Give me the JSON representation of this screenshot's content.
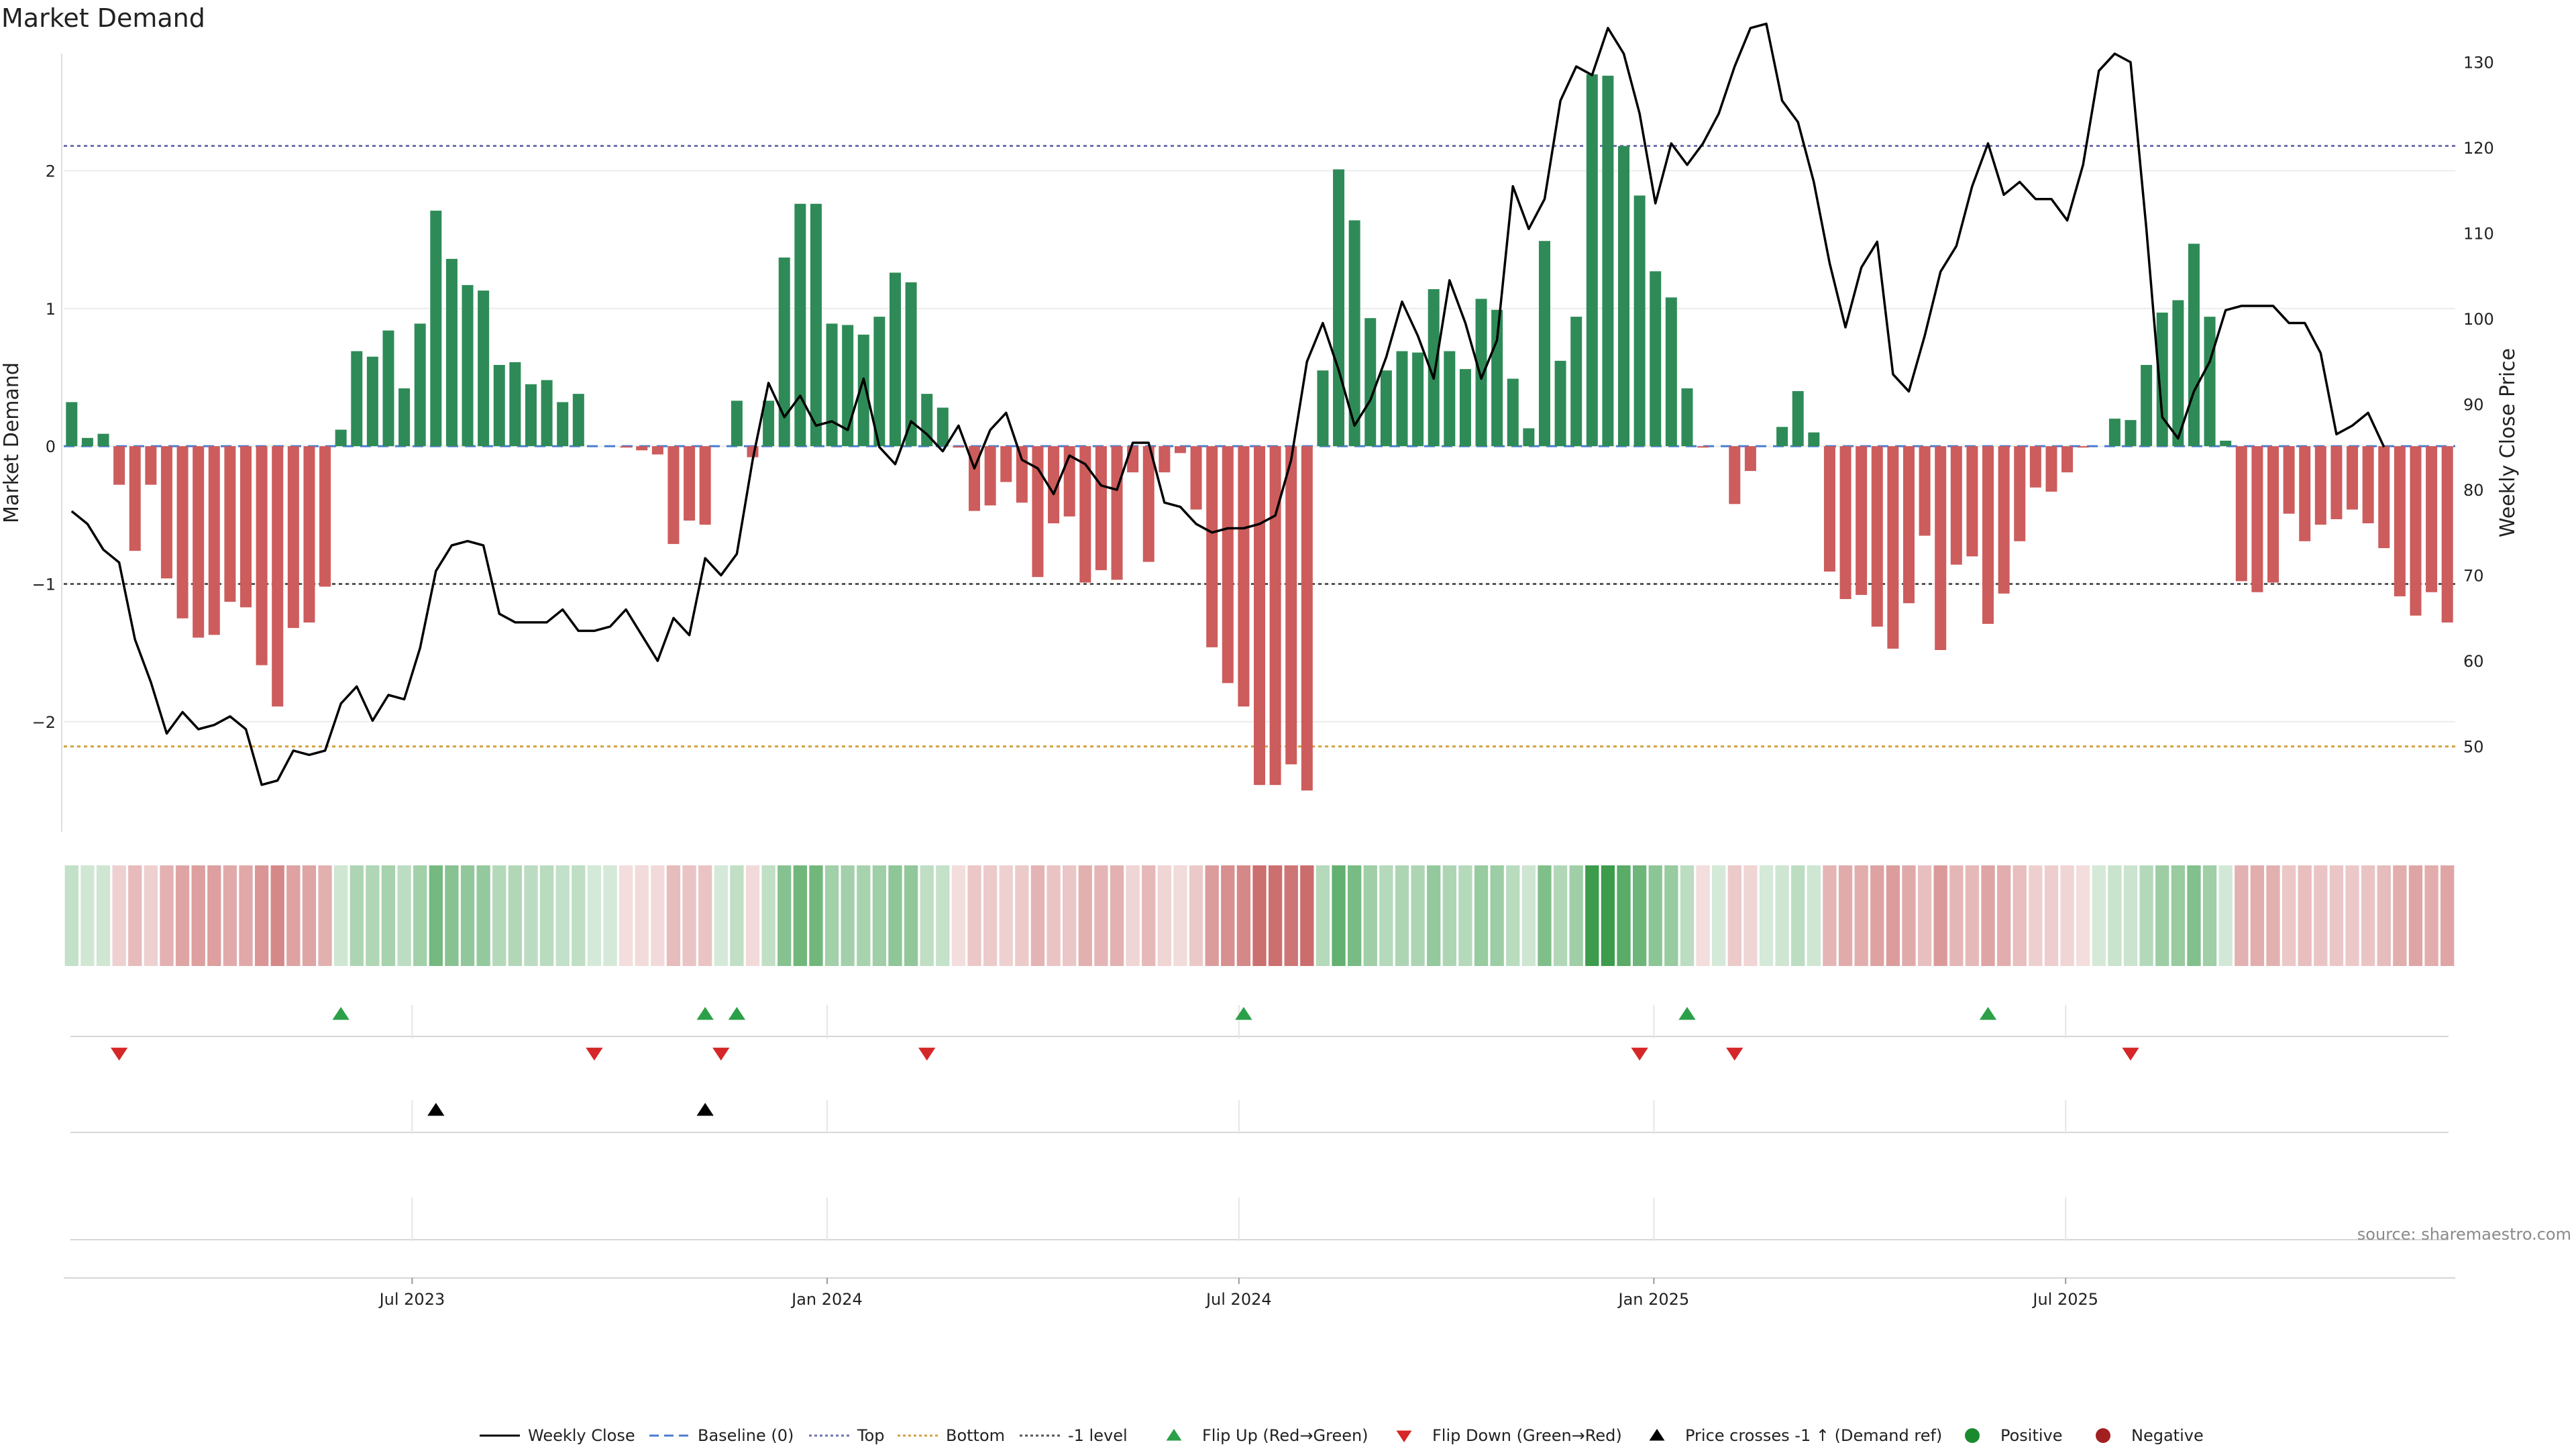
{
  "title": "Market Demand",
  "source": "source: sharemaestro.com",
  "colors": {
    "positive": "#2e8b57",
    "negative": "#cd5c5c",
    "price": "#000000",
    "baseline": "#4a7bd0",
    "top": "#7070b0",
    "bottom": "#d4a040",
    "minus1": "#555555",
    "flip_up": "#2ca048",
    "flip_down": "#d62728",
    "heat_pos": "#3c9c4c",
    "heat_neg": "#c86464",
    "dot_pos": "#1b8a2e",
    "dot_neg": "#a32020"
  },
  "chart_data": {
    "type": "bar",
    "ylabel": "Market Demand",
    "y2label": "Weekly Close Price",
    "ylim": [
      -2.8,
      2.85
    ],
    "y2lim": [
      40,
      131
    ],
    "yticks": [
      2,
      1,
      0,
      -1,
      -2
    ],
    "yticklabels": [
      "2",
      "1",
      "0",
      "−1",
      "−2"
    ],
    "y2ticks": [
      130,
      120,
      110,
      100,
      90,
      80,
      70,
      60,
      50
    ],
    "top_level": 2.18,
    "bottom_level": -2.18,
    "minus1_level": -1,
    "xticks": [
      {
        "label": "Jul 2023",
        "week": 21.5
      },
      {
        "label": "Jan 2024",
        "week": 47.7
      },
      {
        "label": "Jul 2024",
        "week": 73.7
      },
      {
        "label": "Jan 2025",
        "week": 99.9
      },
      {
        "label": "Jul 2025",
        "week": 125.9
      }
    ],
    "demand": [
      0.32,
      0.06,
      0.09,
      -0.28,
      -0.76,
      -0.28,
      -0.96,
      -1.25,
      -1.39,
      -1.37,
      -1.13,
      -1.17,
      -1.59,
      -1.89,
      -1.32,
      -1.28,
      -1.02,
      0.12,
      0.69,
      0.65,
      0.84,
      0.42,
      0.89,
      1.71,
      1.36,
      1.17,
      1.13,
      0.59,
      0.61,
      0.45,
      0.48,
      0.32,
      0.38,
      0.0,
      0.0,
      -0.01,
      -0.03,
      -0.06,
      -0.71,
      -0.54,
      -0.57,
      0.0,
      0.33,
      -0.08,
      0.33,
      1.37,
      1.76,
      1.76,
      0.89,
      0.88,
      0.81,
      0.94,
      1.26,
      1.19,
      0.38,
      0.28,
      -0.01,
      -0.47,
      -0.43,
      -0.26,
      -0.41,
      -0.95,
      -0.56,
      -0.51,
      -0.99,
      -0.9,
      -0.97,
      -0.19,
      -0.84,
      -0.19,
      -0.05,
      -0.46,
      -1.46,
      -1.72,
      -1.89,
      -2.46,
      -2.46,
      -2.31,
      -2.5,
      0.55,
      2.01,
      1.64,
      0.93,
      0.55,
      0.69,
      0.68,
      1.14,
      0.69,
      0.56,
      1.07,
      0.99,
      0.49,
      0.13,
      1.49,
      0.62,
      0.94,
      2.7,
      2.69,
      2.18,
      1.82,
      1.27,
      1.08,
      0.42,
      -0.01,
      0.0,
      -0.42,
      -0.18,
      0.0,
      0.14,
      0.4,
      0.1,
      -0.91,
      -1.11,
      -1.08,
      -1.31,
      -1.47,
      -1.14,
      -0.65,
      -1.48,
      -0.86,
      -0.8,
      -1.29,
      -1.07,
      -0.69,
      -0.3,
      -0.33,
      -0.19,
      -0.01,
      0.0,
      0.2,
      0.19,
      0.59,
      0.97,
      1.06,
      1.47,
      0.94,
      0.04,
      -0.98,
      -1.06,
      -0.99,
      -0.49,
      -0.69,
      -0.57,
      -0.53,
      -0.46,
      -0.56,
      -0.74,
      -1.09,
      -1.23,
      -1.06,
      -1.28
    ],
    "price": [
      77.5,
      76,
      73,
      71.5,
      62.5,
      57.5,
      51.5,
      54,
      52,
      52.5,
      53.5,
      52,
      45.5,
      46,
      49.5,
      49,
      49.5,
      55,
      57,
      53,
      56,
      55.5,
      61.5,
      70.5,
      73.5,
      74,
      73.5,
      65.5,
      64.5,
      64.5,
      64.5,
      66,
      63.5,
      63.5,
      64,
      66,
      63,
      60,
      65,
      63,
      72,
      70,
      72.5,
      83.5,
      92.5,
      88.5,
      91,
      87.5,
      88,
      87,
      93,
      85,
      83,
      88,
      86.5,
      84.5,
      87.5,
      82.5,
      87,
      89,
      83.5,
      82.5,
      79.5,
      84,
      83,
      80.5,
      80,
      85.5,
      85.5,
      78.5,
      78,
      76,
      75,
      75.5,
      75.5,
      76,
      77,
      83.5,
      95,
      99.5,
      94,
      87.5,
      90.5,
      95.5,
      102,
      98,
      93,
      104.5,
      99.5,
      93,
      97.5,
      115.5,
      110.5,
      114,
      125.5,
      129.5,
      128.5,
      134,
      131,
      124,
      113.5,
      120.5,
      118,
      120.5,
      124,
      129.5,
      134,
      134.5,
      125.5,
      123,
      116,
      106.5,
      99,
      106,
      109,
      93.5,
      91.5,
      98,
      105.5,
      108.5,
      115.5,
      120.5,
      114.5,
      116,
      114,
      114,
      111.5,
      118,
      129,
      131,
      130,
      110.5,
      88.5,
      86,
      91.5,
      95,
      101,
      101.5,
      101.5,
      101.5,
      99.5,
      99.5,
      96,
      86.5,
      87.5,
      89,
      85
    ]
  },
  "timeline": {
    "heat_rows": "ribbon",
    "flip_up": [
      17,
      40,
      42,
      74,
      102,
      121
    ],
    "flip_down": [
      3,
      33,
      41,
      54,
      99,
      105,
      130
    ],
    "price_cross": [
      23,
      40
    ]
  },
  "legend": [
    {
      "label": "Weekly Close",
      "marker": "line-solid",
      "color_key": "price"
    },
    {
      "label": "Baseline (0)",
      "marker": "line-dashed",
      "color_key": "baseline"
    },
    {
      "label": "Top",
      "marker": "line-dotted",
      "color_key": "top"
    },
    {
      "label": "Bottom",
      "marker": "line-dotted",
      "color_key": "bottom"
    },
    {
      "label": "-1 level",
      "marker": "line-dotted",
      "color_key": "minus1"
    },
    {
      "label": "Flip Up (Red→Green)",
      "marker": "triangle-up",
      "color_key": "flip_up"
    },
    {
      "label": "Flip Down (Green→Red)",
      "marker": "triangle-down",
      "color_key": "flip_down"
    },
    {
      "label": "Price crosses -1 ↑ (Demand ref)",
      "marker": "triangle-up",
      "color_key": "price"
    },
    {
      "label": "Positive",
      "marker": "dot",
      "color_key": "dot_pos"
    },
    {
      "label": "Negative",
      "marker": "dot",
      "color_key": "dot_neg"
    }
  ]
}
